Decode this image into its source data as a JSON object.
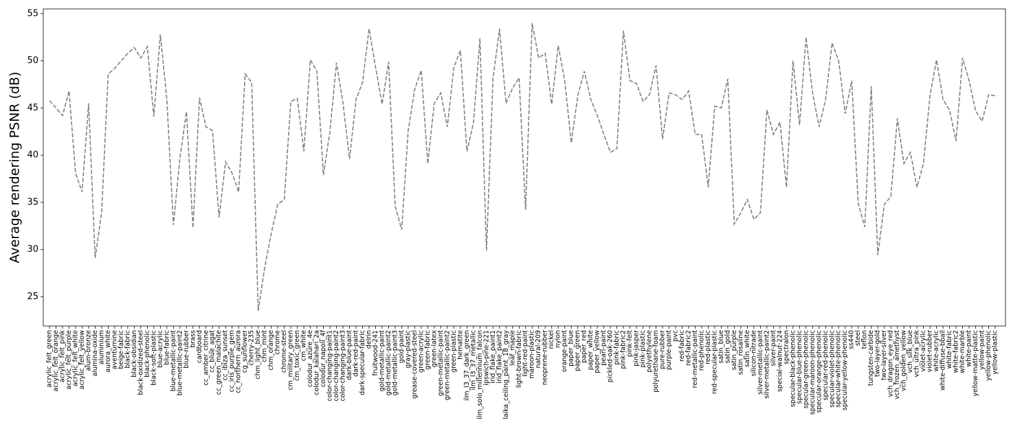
{
  "chart_data": {
    "type": "line",
    "ylabel": "Average rendering PSNR (dB)",
    "categories": [
      "acrylic_felt_green",
      "acrylic_felt_orange",
      "acrylic_felt_pink",
      "acrylic_felt_purple",
      "acrylic_felt_white",
      "acrylic_felt_yellow",
      "alum-bronze",
      "alumina-oxide",
      "aluminium",
      "aurora_white",
      "aventurnine",
      "beige-fabric",
      "black-fabric",
      "black-obsidian",
      "black-oxidized-steel",
      "black-phenolic",
      "black-soft-plastic",
      "blue-acrylic",
      "blue-fabric",
      "blue-metallic-paint",
      "blue-metallic-paint2",
      "blue-rubber",
      "brass",
      "cardboard",
      "cc_amber_citrine",
      "cc_blue_agat",
      "cc_green_malachite",
      "cc_ibiza_sunset",
      "cc_iris_purple_gem",
      "cc_northern_aurora",
      "cg_sunflower",
      "cherry-235",
      "chm_light_blue",
      "chm_mint",
      "chm_orange",
      "chrome",
      "chrome-steel",
      "cm_military_green",
      "cm_toxic_green",
      "cm_white",
      "colodur_azure_4e",
      "colodur_kalahari_2a",
      "colodur_napoli_4f",
      "color-changing-paint1",
      "color-changing-paint2",
      "color-changing-paint3",
      "dark-blue-paint",
      "dark-red-paint",
      "dark-specular-fabric",
      "delrin",
      "fruitwood-241",
      "gold-metallic-paint",
      "gold-metallic-paint2",
      "gold-metallic-paint3",
      "gold-paint",
      "gray-plastic",
      "grease-covered-steel",
      "green-acrylic",
      "green-fabric",
      "green-latex",
      "green-metallic-paint",
      "green-metallic-paint2",
      "green-plastic",
      "hematite",
      "ilm_l3_37_dark_green",
      "ilm_l3_37_metallic",
      "ilm_solo_millennium_falcon",
      "ipswich-pine-221",
      "irid_flake_paint1",
      "irid_flake_paint2",
      "laika_ceiling_paint_18_gray",
      "leaf_maple",
      "light-brown-fabric",
      "light-red-paint",
      "maroon-plastic",
      "natural-209",
      "neoprene-rubber",
      "nickel",
      "nylon",
      "orange-paint",
      "paper_blue",
      "paper_green",
      "paper_red",
      "paper_white",
      "paper_yellow",
      "pearl-paint",
      "pickled-oak-260",
      "pink-fabric",
      "pink-fabric2",
      "pink-felt",
      "pink-jasper",
      "pink-plastic",
      "polyethylene",
      "polyurethane-foam",
      "pure-rubber",
      "purple-paint",
      "pvc",
      "red-fabric",
      "red-fabric2",
      "red-metallic-paint",
      "red-phenolic",
      "red-plastic",
      "red-specular-plastic",
      "satin_blue",
      "satin_gold",
      "satin_purple",
      "satin_rosaline",
      "satin_white",
      "silicon-nitrade",
      "silver-metallic-paint",
      "silver-metallic-paint2",
      "silver-paint",
      "special-walnut-224",
      "spectralon",
      "specular-black-phenolic",
      "specular-blue-phenolic",
      "specular-green-phenolic",
      "specular-maroon-phenolic",
      "specular-orange-phenolic",
      "specular-red-phenolic",
      "specular-violet-phenolic",
      "specular-white-phenolic",
      "specular-yellow-phenolic",
      "ss440",
      "steel",
      "teflon",
      "tungsten-carbide",
      "two-layer-gold",
      "two-layer-silver",
      "vch_dragon_eye_red",
      "vch_frozen_amethyst",
      "vch_golden_yellow",
      "vch_silk_blue",
      "vch_ultra_pink",
      "violet-acrylic",
      "violet-rubber",
      "white-acrylic",
      "white-diffuse-bball",
      "white-fabric",
      "white-fabric2",
      "white-marble",
      "white-paint",
      "yellow-matte-plastic",
      "yellow-paint",
      "yellow-phenolic",
      "yellow-plastic"
    ],
    "values": [
      45.8,
      45.0,
      44.2,
      46.8,
      38.1,
      36.1,
      45.5,
      29.1,
      34.0,
      48.6,
      49.2,
      50.0,
      50.8,
      51.4,
      50.3,
      51.5,
      44.1,
      52.8,
      45.9,
      32.6,
      39.7,
      44.6,
      32.3,
      46.1,
      43.0,
      42.6,
      33.4,
      39.3,
      38.1,
      36.1,
      48.6,
      47.7,
      23.5,
      28.1,
      31.7,
      34.8,
      35.3,
      45.7,
      46.0,
      40.4,
      50.1,
      48.9,
      37.9,
      42.5,
      49.8,
      45.5,
      39.6,
      45.9,
      47.7,
      53.4,
      49.3,
      45.4,
      49.9,
      34.6,
      32.1,
      42.6,
      47.0,
      49.0,
      39.1,
      45.5,
      46.6,
      43.0,
      49.3,
      51.1,
      40.4,
      43.4,
      52.4,
      29.9,
      48.1,
      53.4,
      45.5,
      47.1,
      48.2,
      34.2,
      54.0,
      50.3,
      50.8,
      45.4,
      51.6,
      47.9,
      41.3,
      46.3,
      48.9,
      45.9,
      44.2,
      42.2,
      40.3,
      40.7,
      53.2,
      47.9,
      47.6,
      45.7,
      46.4,
      49.5,
      41.7,
      46.6,
      46.4,
      45.9,
      46.8,
      42.2,
      42.2,
      36.6,
      45.2,
      45.0,
      48.1,
      32.7,
      33.9,
      35.3,
      33.2,
      33.9,
      44.8,
      42.2,
      43.5,
      36.6,
      50.0,
      43.2,
      52.5,
      46.6,
      43.0,
      45.9,
      51.9,
      50.0,
      44.4,
      47.9,
      34.9,
      32.4,
      47.3,
      29.4,
      34.8,
      35.6,
      43.9,
      39.1,
      40.3,
      36.6,
      39.1,
      46.3,
      50.1,
      45.9,
      44.8,
      41.5,
      50.3,
      47.9,
      44.7,
      43.6,
      46.4,
      46.3
    ],
    "color": "#808080",
    "dashed": true,
    "ylim": [
      21.9,
      55.5
    ],
    "yticks": [
      25,
      30,
      35,
      40,
      45,
      50,
      55
    ]
  }
}
